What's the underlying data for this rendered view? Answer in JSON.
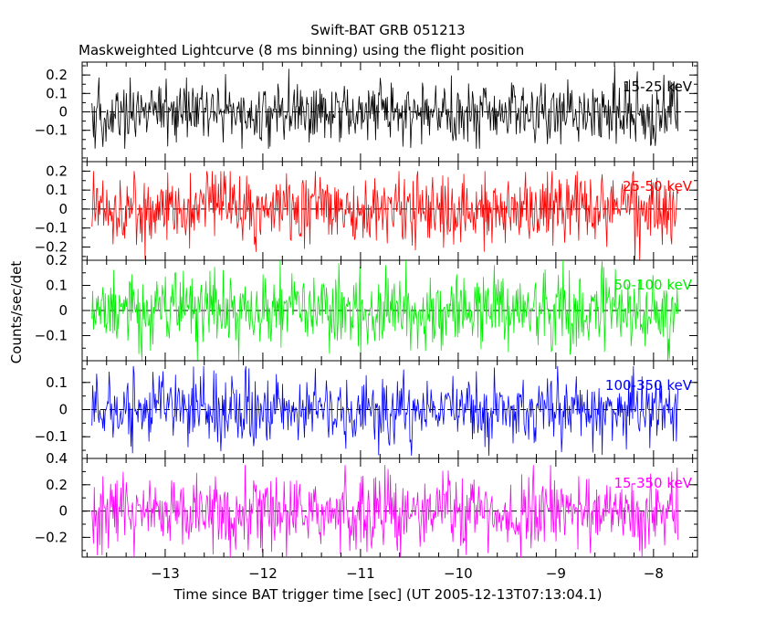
{
  "chart_data": {
    "type": "line",
    "title": "Swift-BAT GRB 051213",
    "subtitle": "Maskweighted Lightcurve (8 ms binning) using the flight position",
    "xlabel": "Time since BAT trigger time [sec] (UT 2005-12-13T07:13:04.1)",
    "ylabel": "Counts/sec/det",
    "xlim": [
      -13.85,
      -7.55
    ],
    "x_start": -13.75,
    "x_end": -7.75,
    "bin_width": 0.008,
    "x_ticks": [
      -13,
      -12,
      -11,
      -10,
      -9,
      -8
    ],
    "grid": false,
    "zero_line": "dashed",
    "panels": [
      {
        "name": "15-25 keV",
        "color": "#000000",
        "ylim": [
          -0.27,
          0.27
        ],
        "y_ticks": [
          -0.1,
          0,
          0.1,
          0.2
        ],
        "y_tick_labels": [
          "−0.1",
          "0",
          "0.1",
          "0.2"
        ],
        "amplitude_range": [
          -0.2,
          0.25
        ]
      },
      {
        "name": "25-50 keV",
        "color": "#ff0000",
        "ylim": [
          -0.27,
          0.25
        ],
        "y_ticks": [
          -0.2,
          -0.1,
          0,
          0.1,
          0.2
        ],
        "y_tick_labels": [
          "−0.2",
          "−0.1",
          "0",
          "0.1",
          "0.2"
        ],
        "amplitude_range": [
          -0.27,
          0.2
        ]
      },
      {
        "name": "50-100 keV",
        "color": "#00ee00",
        "ylim": [
          -0.2,
          0.2
        ],
        "y_ticks": [
          -0.1,
          0,
          0.1,
          0.2
        ],
        "y_tick_labels": [
          "−0.1",
          "0",
          "0.1",
          "0.2"
        ],
        "amplitude_range": [
          -0.2,
          0.2
        ]
      },
      {
        "name": "100-350 keV",
        "color": "#0000ff",
        "ylim": [
          -0.18,
          0.18
        ],
        "y_ticks": [
          -0.1,
          0,
          0.1
        ],
        "y_tick_labels": [
          "−0.1",
          "0",
          "0.1"
        ],
        "amplitude_range": [
          -0.17,
          0.16
        ]
      },
      {
        "name": "15-350 keV",
        "color": "#ff00ff",
        "ylim": [
          -0.35,
          0.4
        ],
        "y_ticks": [
          -0.2,
          0,
          0.2,
          0.4
        ],
        "y_tick_labels": [
          "−0.2",
          "0",
          "0.2",
          "0.4"
        ],
        "amplitude_range": [
          -0.35,
          0.35
        ]
      }
    ]
  }
}
